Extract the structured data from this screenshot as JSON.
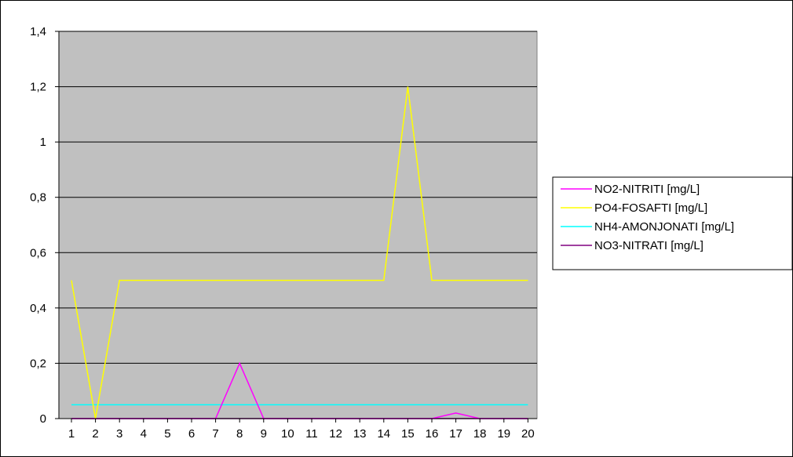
{
  "chart_data": {
    "type": "line",
    "title": "",
    "xlabel": "",
    "ylabel": "",
    "categories": [
      "1",
      "2",
      "3",
      "4",
      "5",
      "6",
      "7",
      "8",
      "9",
      "10",
      "11",
      "12",
      "13",
      "14",
      "15",
      "16",
      "17",
      "18",
      "19",
      "20"
    ],
    "ylim": [
      0,
      1.4
    ],
    "yticks": [
      0,
      0.2,
      0.4,
      0.6,
      0.8,
      1,
      1.2,
      1.4
    ],
    "ytick_labels": [
      "0",
      "0,2",
      "0,4",
      "0,6",
      "0,8",
      "1",
      "1,2",
      "1,4"
    ],
    "grid": "horizontal",
    "legend": "right",
    "plot_background": "#c0c0c0",
    "series": [
      {
        "name": "NO2-NITRITI [mg/L]",
        "color": "#ff00ff",
        "values": [
          0,
          0,
          0,
          0,
          0,
          0,
          0,
          0.2,
          0,
          0,
          0,
          0,
          0,
          0,
          0,
          0,
          0.02,
          0,
          0,
          0
        ]
      },
      {
        "name": "PO4-FOSAFTI [mg/L]",
        "color": "#ffff00",
        "values": [
          0.5,
          0,
          0.5,
          0.5,
          0.5,
          0.5,
          0.5,
          0.5,
          0.5,
          0.5,
          0.5,
          0.5,
          0.5,
          0.5,
          1.2,
          0.5,
          0.5,
          0.5,
          0.5,
          0.5
        ]
      },
      {
        "name": "NH4-AMONJONATI [mg/L]",
        "color": "#00ffff",
        "values": [
          0.05,
          0.05,
          0.05,
          0.05,
          0.05,
          0.05,
          0.05,
          0.05,
          0.05,
          0.05,
          0.05,
          0.05,
          0.05,
          0.05,
          0.05,
          0.05,
          0.05,
          0.05,
          0.05,
          0.05
        ]
      },
      {
        "name": "NO3-NITRATI [mg/L]",
        "color": "#800080",
        "values": [
          0,
          0,
          0,
          0,
          0,
          0,
          0,
          0,
          0,
          0,
          0,
          0,
          0,
          0,
          0,
          0,
          0,
          0,
          0,
          0
        ]
      }
    ]
  }
}
